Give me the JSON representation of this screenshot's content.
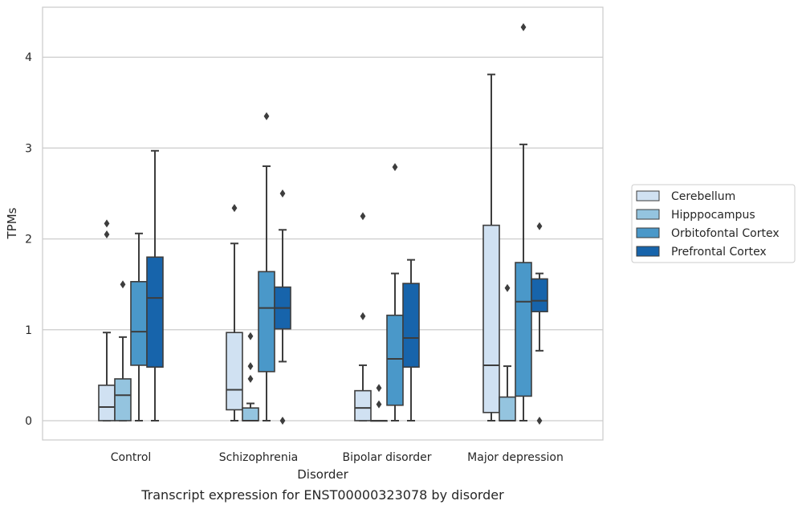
{
  "chart_data": {
    "type": "box",
    "xlabel": "Disorder",
    "ylabel": "TPMs",
    "caption": "Transcript expression for ENST00000323078 by disorder",
    "ylim": [
      -0.21,
      4.55
    ],
    "yticks": [
      0,
      1,
      2,
      3,
      4
    ],
    "grid": true,
    "legend_position": "right",
    "categories": [
      "Control",
      "Schizophrenia",
      "Bipolar disorder",
      "Major depression"
    ],
    "series": [
      {
        "name": "Cerebellum",
        "color": "#d0e1f2",
        "boxes": [
          {
            "whislo": 0,
            "q1": 0,
            "med": 0.15,
            "q3": 0.39,
            "whishi": 0.97,
            "fliers": [
              2.05,
              2.17
            ]
          },
          {
            "whislo": 0,
            "q1": 0.12,
            "med": 0.34,
            "q3": 0.97,
            "whishi": 1.95,
            "fliers": [
              2.34
            ]
          },
          {
            "whislo": 0,
            "q1": 0,
            "med": 0.14,
            "q3": 0.33,
            "whishi": 0.61,
            "fliers": [
              1.15,
              2.25
            ]
          },
          {
            "whislo": 0,
            "q1": 0.09,
            "med": 0.61,
            "q3": 2.15,
            "whishi": 3.81,
            "fliers": []
          }
        ]
      },
      {
        "name": "Hipppocampus",
        "color": "#94c4df",
        "boxes": [
          {
            "whislo": 0,
            "q1": 0,
            "med": 0.28,
            "q3": 0.46,
            "whishi": 0.92,
            "fliers": [
              1.5
            ]
          },
          {
            "whislo": 0,
            "q1": 0,
            "med": 0,
            "q3": 0.14,
            "whishi": 0.19,
            "fliers": [
              0.46,
              0.6,
              0.93
            ]
          },
          {
            "whislo": 0,
            "q1": 0,
            "med": 0,
            "q3": 0,
            "whishi": 0,
            "fliers": [
              0.18,
              0.36
            ]
          },
          {
            "whislo": 0,
            "q1": 0,
            "med": 0,
            "q3": 0.26,
            "whishi": 0.6,
            "fliers": [
              1.46
            ]
          }
        ]
      },
      {
        "name": "Orbitofontal Cortex",
        "color": "#4a98c9",
        "boxes": [
          {
            "whislo": 0,
            "q1": 0.61,
            "med": 0.98,
            "q3": 1.53,
            "whishi": 2.06,
            "fliers": []
          },
          {
            "whislo": 0,
            "q1": 0.54,
            "med": 1.24,
            "q3": 1.64,
            "whishi": 2.8,
            "fliers": [
              3.35
            ]
          },
          {
            "whislo": 0,
            "q1": 0.17,
            "med": 0.68,
            "q3": 1.16,
            "whishi": 1.62,
            "fliers": [
              2.79
            ]
          },
          {
            "whislo": 0,
            "q1": 0.27,
            "med": 1.31,
            "q3": 1.74,
            "whishi": 3.04,
            "fliers": [
              4.33
            ]
          }
        ]
      },
      {
        "name": "Prefrontal Cortex",
        "color": "#1764ab",
        "boxes": [
          {
            "whislo": 0,
            "q1": 0.59,
            "med": 1.35,
            "q3": 1.8,
            "whishi": 2.97,
            "fliers": []
          },
          {
            "whislo": 0.65,
            "q1": 1.01,
            "med": 1.24,
            "q3": 1.47,
            "whishi": 2.1,
            "fliers": [
              0,
              2.5
            ]
          },
          {
            "whislo": 0,
            "q1": 0.59,
            "med": 0.91,
            "q3": 1.51,
            "whishi": 1.77,
            "fliers": []
          },
          {
            "whislo": 0.77,
            "q1": 1.2,
            "med": 1.32,
            "q3": 1.56,
            "whishi": 1.62,
            "fliers": [
              0,
              2.14
            ]
          }
        ]
      }
    ]
  }
}
